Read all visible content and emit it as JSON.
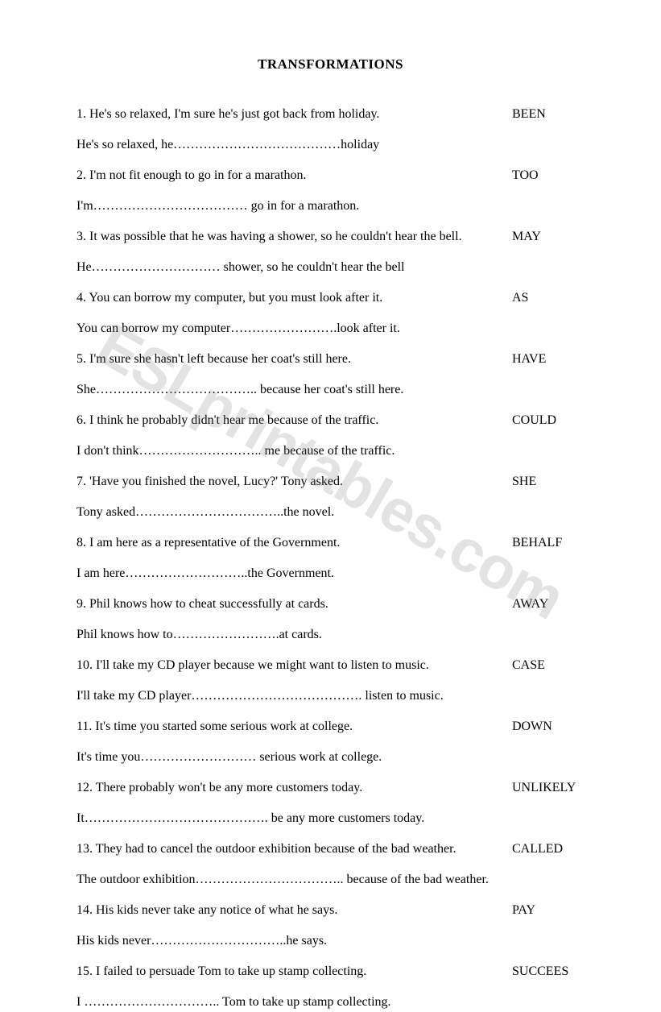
{
  "title": "TRANSFORMATIONS",
  "watermark": "ESLprintables.com",
  "items": [
    {
      "num": "1",
      "prompt": "He's so relaxed, I'm sure he's just got back from holiday.",
      "keyword": "BEEN",
      "response": "He's so relaxed, he…………………………………holiday"
    },
    {
      "num": "2",
      "prompt": "I'm not fit enough to go in for a marathon.",
      "keyword": "TOO",
      "response": "I'm……………………………… go in for a marathon."
    },
    {
      "num": "3",
      "prompt": "It was possible that he was having a shower, so he couldn't hear the bell.",
      "keyword": "MAY",
      "response": "He………………………… shower, so he couldn't hear the bell"
    },
    {
      "num": "4",
      "prompt": "You can borrow my computer, but you must look after it.",
      "keyword": "AS",
      "response": "You can borrow my computer…………………….look after it."
    },
    {
      "num": "5",
      "prompt": "I'm sure she hasn't left because her coat's still here.",
      "keyword": "HAVE",
      "response": "She……………………………….. because her coat's still here."
    },
    {
      "num": "6",
      "prompt": "I think he probably didn't hear me because of the traffic.",
      "keyword": "COULD",
      "response": "I don't think……………………….. me because of the traffic."
    },
    {
      "num": "7",
      "prompt": "'Have you finished the novel, Lucy?' Tony asked.",
      "keyword": "SHE",
      "response": "Tony asked……………………………..the novel."
    },
    {
      "num": "8",
      "prompt": "I am here as a representative of the Government.",
      "keyword": "BEHALF",
      "response": "I am here………………………..the Government."
    },
    {
      "num": "9",
      "prompt": "Phil knows how to cheat successfully at cards.",
      "keyword": "AWAY",
      "response": "Phil knows how to…………………….at cards."
    },
    {
      "num": "10",
      "prompt": "I'll take my CD player because we might want to listen to music.",
      "keyword": "CASE",
      "response": "I'll take my CD player…………………………………. listen to music."
    },
    {
      "num": "11",
      "prompt": "It's time you started some serious work at college.",
      "keyword": "DOWN",
      "response": "It's time you……………………… serious work at college."
    },
    {
      "num": "12",
      "prompt": "There probably won't be any more customers today.",
      "keyword": "UNLIKELY",
      "response": "It……………………………………. be any more customers today."
    },
    {
      "num": "13",
      "prompt": "They had to cancel the outdoor exhibition because of the bad weather.",
      "keyword": "CALLED",
      "response": "The outdoor exhibition…………………………….. because of the bad weather."
    },
    {
      "num": "14",
      "prompt": "His kids never take any notice of what he says.",
      "keyword": "PAY",
      "response": "His kids never…………………………..he says."
    },
    {
      "num": "15",
      "prompt": "I failed to persuade Tom to take up stamp collecting.",
      "keyword": "SUCCEES",
      "response": "I ………………………….. Tom to take up stamp collecting."
    }
  ]
}
